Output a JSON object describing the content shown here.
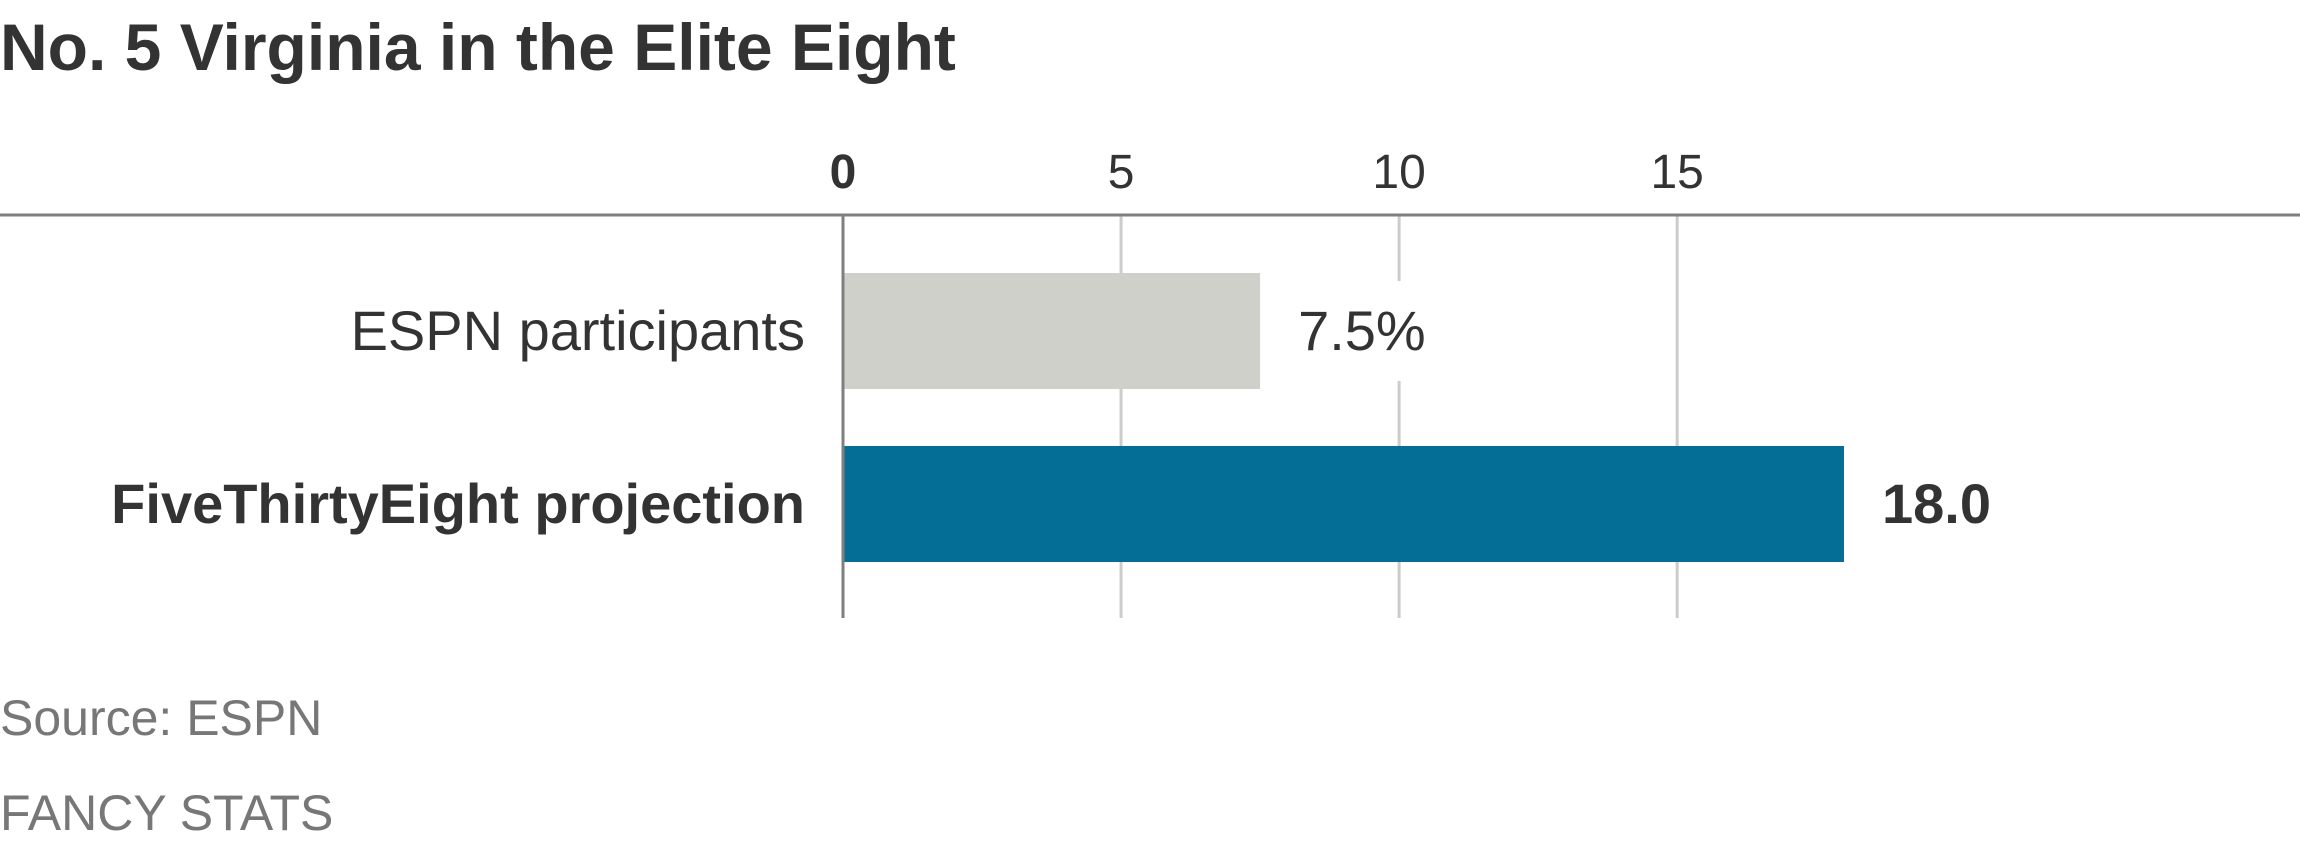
{
  "chart_data": {
    "type": "bar",
    "orientation": "horizontal",
    "title": "No. 5 Virginia in the Elite Eight",
    "categories": [
      "ESPN participants",
      "FiveThirtyEight projection"
    ],
    "values": [
      7.5,
      18.0
    ],
    "value_labels": [
      "7.5%",
      "18.0"
    ],
    "bold_categories": [
      false,
      true
    ],
    "colors": [
      "#d0d0cb",
      "#046e97"
    ],
    "x_ticks": [
      0,
      5,
      10,
      15
    ],
    "x_tick_labels": [
      "0",
      "5",
      "10",
      "15"
    ],
    "xlim": [
      0,
      26.2
    ],
    "grid": true,
    "xlabel": "",
    "ylabel": ""
  },
  "footer": {
    "source": "Source: ESPN",
    "credit": "FANCY STATS"
  },
  "colors": {
    "text": "#333333",
    "gridline": "#cccccc",
    "axis": "#7f7f7f",
    "footer_text": "#777777"
  }
}
